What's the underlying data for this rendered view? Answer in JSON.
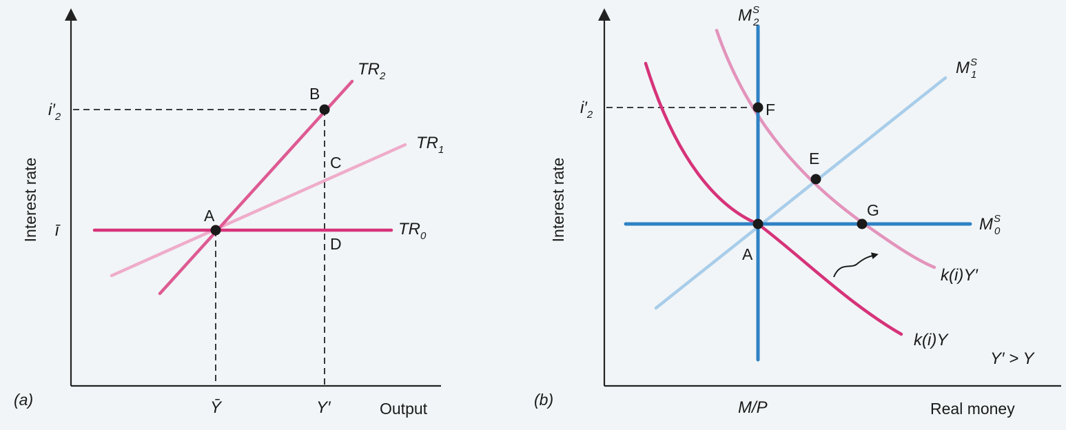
{
  "colors": {
    "background": "#f1f5f7",
    "magenta": "#d6337a",
    "magenta_mid": "#de5a93",
    "pink_light": "#efaccb",
    "pink_mid": "#e394bc",
    "blue": "#2f82c5",
    "blue_light": "#a8cdea",
    "axis": "#222222",
    "point": "#1a1a1a"
  },
  "panel_a": {
    "panel_label": "(a)",
    "y_axis_label": "Interest rate",
    "x_axis_label": "Output",
    "y_ticks": {
      "i2_prime": "i′",
      "i2_prime_sub": "2",
      "i_bar": "ī"
    },
    "x_ticks": {
      "y_bar": "Ȳ",
      "y_prime": "Y′"
    },
    "curves": {
      "tr2": {
        "name": "TR",
        "sub": "2"
      },
      "tr1": {
        "name": "TR",
        "sub": "1"
      },
      "tr0": {
        "name": "TR",
        "sub": "0"
      }
    },
    "points": {
      "a": "A",
      "b": "B",
      "c": "C",
      "d": "D"
    }
  },
  "panel_b": {
    "panel_label": "(b)",
    "y_axis_label": "Interest rate",
    "x_axis_label": "Real money",
    "y_ticks": {
      "i2_prime": "i′",
      "i2_prime_sub": "2"
    },
    "x_ticks": {
      "mp": "M/P"
    },
    "curves": {
      "ms2": {
        "name": "M",
        "sup": "S",
        "sub": "2"
      },
      "ms1": {
        "name": "M",
        "sup": "S",
        "sub": "1"
      },
      "ms0": {
        "name": "M",
        "sup": "S",
        "sub": "0"
      },
      "kiy_prime": "k(i)Y′",
      "kiy": "k(i)Y"
    },
    "points": {
      "a": "A",
      "e": "E",
      "f": "F",
      "g": "G"
    },
    "note": "Y′ > Y"
  }
}
